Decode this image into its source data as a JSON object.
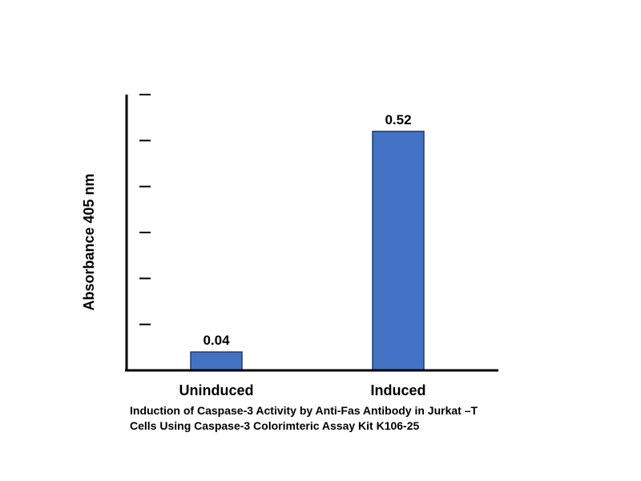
{
  "chart_data": {
    "type": "bar",
    "categories": [
      "Uninduced",
      "Induced"
    ],
    "values": [
      0.04,
      0.52
    ],
    "data_labels": [
      "0.04",
      "0.52"
    ],
    "title": "",
    "caption": [
      "Induction of Caspase-3 Activity by Anti-Fas Antibody in Jurkat –T",
      "Cells Using Caspase-3 Colorimteric Assay Kit K106-25"
    ],
    "xlabel": "",
    "ylabel": "Absorbance  405 nm",
    "ylim": [
      0,
      0.6
    ],
    "y_tick_values": [
      0.1,
      0.2,
      0.3,
      0.4,
      0.5,
      0.6
    ],
    "y_tick_labels_shown": false,
    "grid": false,
    "legend": "none",
    "bar_color": "#4472c4",
    "bar_edge_color": "#1f3c6e",
    "axis_color": "#000000"
  }
}
